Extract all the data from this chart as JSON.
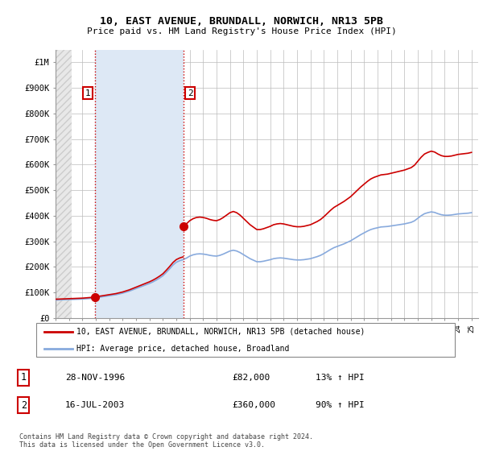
{
  "title1": "10, EAST AVENUE, BRUNDALL, NORWICH, NR13 5PB",
  "title2": "Price paid vs. HM Land Registry's House Price Index (HPI)",
  "xlim_start": 1994.0,
  "xlim_end": 2025.5,
  "ylim_min": 0,
  "ylim_max": 1050000,
  "yticks": [
    0,
    100000,
    200000,
    300000,
    400000,
    500000,
    600000,
    700000,
    800000,
    900000,
    1000000
  ],
  "ytick_labels": [
    "£0",
    "£100K",
    "£200K",
    "£300K",
    "£400K",
    "£500K",
    "£600K",
    "£700K",
    "£800K",
    "£900K",
    "£1M"
  ],
  "sale1_x": 1996.91,
  "sale1_y": 82000,
  "sale1_label": "1",
  "sale2_x": 2003.54,
  "sale2_y": 360000,
  "sale2_label": "2",
  "red_line_color": "#cc0000",
  "blue_line_color": "#88aadd",
  "marker_color": "#cc0000",
  "sale_marker_size": 7,
  "legend_label_red": "10, EAST AVENUE, BRUNDALL, NORWICH, NR13 5PB (detached house)",
  "legend_label_blue": "HPI: Average price, detached house, Broadland",
  "footnote": "Contains HM Land Registry data © Crown copyright and database right 2024.\nThis data is licensed under the Open Government Licence v3.0.",
  "grid_color": "#bbbbbb",
  "bg_color": "#ffffff",
  "plot_bg_color": "#ffffff",
  "shaded_region_color": "#dde8f5",
  "hatch_bg_color": "#e0e0e0"
}
